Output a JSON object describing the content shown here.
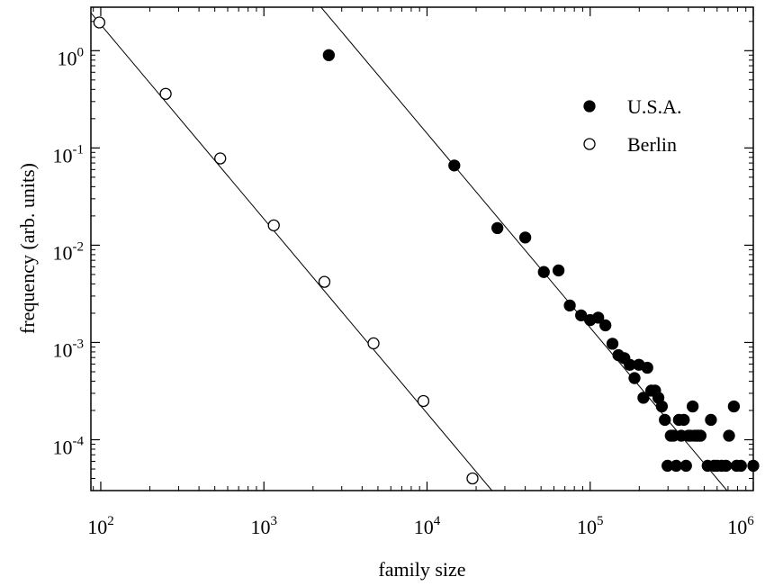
{
  "chart_data": {
    "type": "scatter",
    "title": "",
    "xlabel": "family size",
    "ylabel": "frequency (arb. units)",
    "xscale": "log",
    "yscale": "log",
    "xlim": [
      87,
      1000000
    ],
    "ylim": [
      3e-05,
      2.8
    ],
    "x_ticks": [
      {
        "value": 100,
        "base": "10",
        "exp": "2"
      },
      {
        "value": 1000,
        "base": "10",
        "exp": "3"
      },
      {
        "value": 10000,
        "base": "10",
        "exp": "4"
      },
      {
        "value": 100000,
        "base": "10",
        "exp": "5"
      },
      {
        "value": 1000000,
        "base": "10",
        "exp": "6"
      }
    ],
    "y_ticks": [
      {
        "value": 0.0001,
        "base": "10",
        "exp": "-4"
      },
      {
        "value": 0.001,
        "base": "10",
        "exp": "-3"
      },
      {
        "value": 0.01,
        "base": "10",
        "exp": "-2"
      },
      {
        "value": 0.1,
        "base": "10",
        "exp": "-1"
      },
      {
        "value": 1,
        "base": "10",
        "exp": "0"
      }
    ],
    "grid": false,
    "legend_position": "top-right",
    "series": [
      {
        "name": "U.S.A.",
        "marker": "filled-circle",
        "color": "#000000",
        "points": [
          [
            2500,
            0.9
          ],
          [
            14700,
            0.066
          ],
          [
            27000,
            0.015
          ],
          [
            40000,
            0.012
          ],
          [
            52000,
            0.0053
          ],
          [
            64000,
            0.0055
          ],
          [
            75000,
            0.0024
          ],
          [
            88000,
            0.0019
          ],
          [
            100000,
            0.0017
          ],
          [
            112000,
            0.0018
          ],
          [
            124000,
            0.0015
          ],
          [
            137000,
            0.00097
          ],
          [
            149000,
            0.00074
          ],
          [
            162000,
            0.00069
          ],
          [
            175000,
            0.00059
          ],
          [
            187000,
            0.00043
          ],
          [
            199000,
            0.00059
          ],
          [
            212000,
            0.00027
          ],
          [
            224000,
            0.00055
          ],
          [
            237000,
            0.00032
          ],
          [
            250000,
            0.00032
          ],
          [
            262000,
            0.00027
          ],
          [
            275000,
            0.00022
          ],
          [
            287000,
            0.00016
          ],
          [
            298000,
            5.4e-05
          ],
          [
            312000,
            0.00011
          ],
          [
            324000,
            0.00011
          ],
          [
            337000,
            5.4e-05
          ],
          [
            350000,
            0.00016
          ],
          [
            362000,
            0.00011
          ],
          [
            375000,
            0.00016
          ],
          [
            387000,
            5.4e-05
          ],
          [
            400000,
            0.00011
          ],
          [
            412000,
            0.00011
          ],
          [
            425000,
            0.00022
          ],
          [
            437000,
            0.00011
          ],
          [
            450000,
            0.00011
          ],
          [
            462000,
            0.00011
          ],
          [
            475000,
            0.00011
          ],
          [
            525000,
            5.4e-05
          ],
          [
            550000,
            0.00016
          ],
          [
            575000,
            5.4e-05
          ],
          [
            600000,
            5.4e-05
          ],
          [
            640000,
            5.4e-05
          ],
          [
            680000,
            5.4e-05
          ],
          [
            710000,
            0.00011
          ],
          [
            760000,
            0.00022
          ],
          [
            790000,
            5.4e-05
          ],
          [
            840000,
            5.4e-05
          ],
          [
            1000000,
            5.4e-05
          ]
        ]
      },
      {
        "name": "Berlin",
        "marker": "open-circle",
        "color": "#000000",
        "points": [
          [
            98,
            1.95
          ],
          [
            250,
            0.36
          ],
          [
            540,
            0.078
          ],
          [
            1150,
            0.016
          ],
          [
            2350,
            0.0042
          ],
          [
            4700,
            0.00098
          ],
          [
            9500,
            0.00025
          ],
          [
            19000,
            4e-05
          ]
        ]
      }
    ],
    "fit_lines": [
      {
        "series": "U.S.A.",
        "from": [
          2240,
          2.8
        ],
        "to": [
          690000,
          3e-05
        ]
      },
      {
        "series": "Berlin",
        "from": [
          87,
          2.45
        ],
        "to": [
          25000,
          3e-05
        ]
      }
    ]
  }
}
